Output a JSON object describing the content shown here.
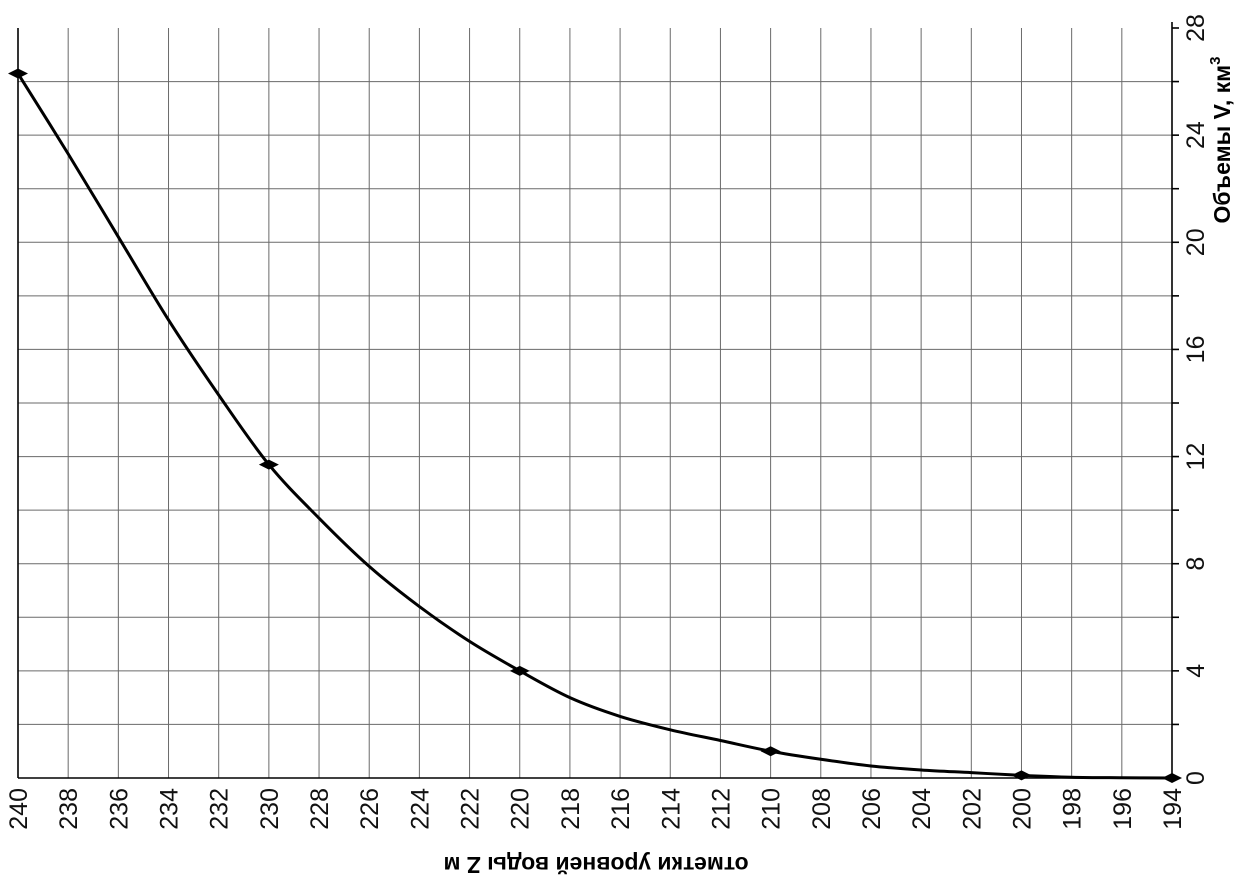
{
  "chart_data": {
    "type": "line",
    "title": "",
    "xlabel": "отметки уровней воды Z м",
    "ylabel": "Объемы V, км",
    "ylabel_superscript": "3",
    "xlim": [
      240,
      194
    ],
    "ylim": [
      0,
      28
    ],
    "x_ticks": [
      240,
      238,
      236,
      234,
      232,
      230,
      228,
      226,
      224,
      222,
      220,
      218,
      216,
      214,
      212,
      210,
      208,
      206,
      204,
      202,
      200,
      198,
      196,
      194
    ],
    "y_ticks": [
      0,
      4,
      8,
      12,
      16,
      20,
      24,
      28
    ],
    "grid": true,
    "series": [
      {
        "points": [
          {
            "x": 240,
            "y": 26.3
          },
          {
            "x": 230,
            "y": 11.7
          },
          {
            "x": 220,
            "y": 4.0
          },
          {
            "x": 210,
            "y": 1.0
          },
          {
            "x": 200,
            "y": 0.1
          },
          {
            "x": 194,
            "y": 0.0
          }
        ],
        "curve": [
          {
            "x": 240,
            "y": 26.3
          },
          {
            "x": 238,
            "y": 23.3
          },
          {
            "x": 236,
            "y": 20.2
          },
          {
            "x": 234,
            "y": 17.1
          },
          {
            "x": 232,
            "y": 14.3
          },
          {
            "x": 230,
            "y": 11.7
          },
          {
            "x": 228,
            "y": 9.7
          },
          {
            "x": 226,
            "y": 7.9
          },
          {
            "x": 224,
            "y": 6.4
          },
          {
            "x": 222,
            "y": 5.1
          },
          {
            "x": 220,
            "y": 4.0
          },
          {
            "x": 218,
            "y": 3.0
          },
          {
            "x": 216,
            "y": 2.3
          },
          {
            "x": 214,
            "y": 1.8
          },
          {
            "x": 212,
            "y": 1.4
          },
          {
            "x": 210,
            "y": 1.0
          },
          {
            "x": 208,
            "y": 0.7
          },
          {
            "x": 206,
            "y": 0.45
          },
          {
            "x": 204,
            "y": 0.3
          },
          {
            "x": 202,
            "y": 0.2
          },
          {
            "x": 200,
            "y": 0.1
          },
          {
            "x": 198,
            "y": 0.03
          },
          {
            "x": 196,
            "y": 0.01
          },
          {
            "x": 194,
            "y": 0.0
          }
        ]
      }
    ]
  }
}
